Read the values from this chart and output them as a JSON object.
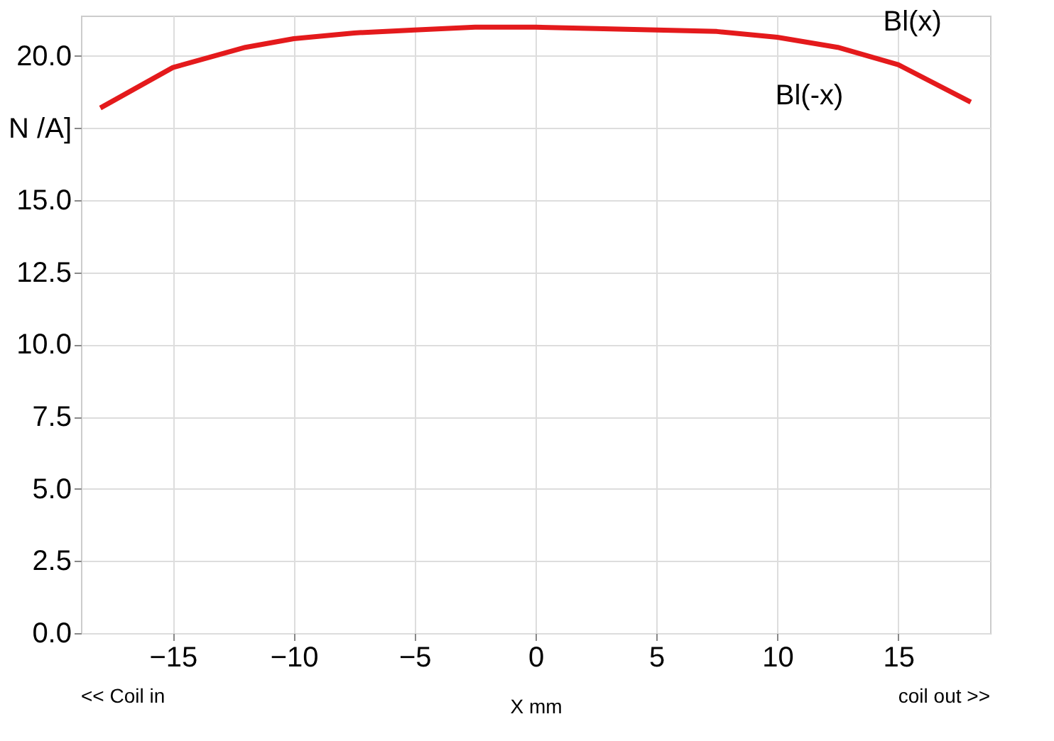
{
  "chart_data": {
    "type": "line",
    "xlabel": "X          mm",
    "xlim": [
      -18.8,
      18.8
    ],
    "xticks": [
      -15,
      -10,
      -5,
      0,
      5,
      10,
      15
    ],
    "ylim": [
      0,
      21.4
    ],
    "yticks": [
      {
        "value": 0,
        "label": "0.0"
      },
      {
        "value": 2.5,
        "label": "2.5"
      },
      {
        "value": 5,
        "label": "5.0"
      },
      {
        "value": 7.5,
        "label": "7.5"
      },
      {
        "value": 10,
        "label": "10.0"
      },
      {
        "value": 12.5,
        "label": "12.5"
      },
      {
        "value": 15,
        "label": "15.0"
      },
      {
        "value": 17.5,
        "label": "N /A]"
      },
      {
        "value": 20,
        "label": "20.0"
      }
    ],
    "x": [
      -18,
      -15,
      -12,
      -10,
      -7.5,
      -5,
      -2.5,
      0,
      2.5,
      5,
      7.5,
      10,
      12.5,
      15,
      18
    ],
    "series": [
      {
        "name": "Bl(x)",
        "color": "#e41a1c",
        "values": [
          18.2,
          19.6,
          20.3,
          20.6,
          20.8,
          20.9,
          21.0,
          21.0,
          20.95,
          20.9,
          20.85,
          20.65,
          20.3,
          19.7,
          18.4
        ]
      }
    ],
    "annotations": [
      "<< Coil in",
      "coil out >>",
      {
        "text": "Bl(-x)",
        "x": 12.5,
        "y": 20.3
      }
    ],
    "grid": true,
    "legend": false,
    "marker": "none",
    "line_style": "solid"
  }
}
